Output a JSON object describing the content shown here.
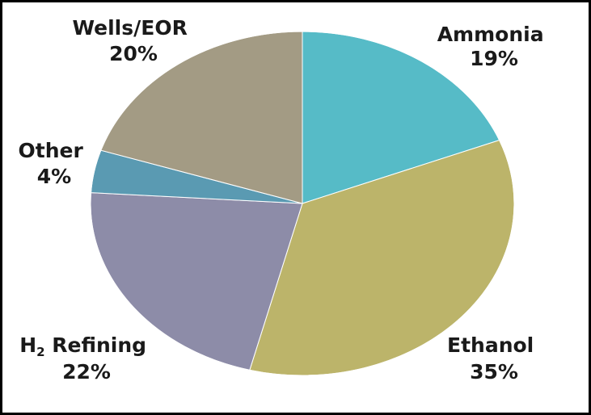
{
  "chart_data": {
    "type": "pie",
    "slices": [
      {
        "label": "Ammonia",
        "value": 19,
        "value_label": "19%",
        "color": "#56bbc7"
      },
      {
        "label": "Ethanol",
        "value": 35,
        "value_label": "35%",
        "color": "#bcb46a"
      },
      {
        "label": "H2 Refining",
        "label_base": "H",
        "label_sub": "2",
        "label_rest": " Refining",
        "value": 22,
        "value_label": "22%",
        "color": "#8d8ca8"
      },
      {
        "label": "Other",
        "value": 4,
        "value_label": "4%",
        "color": "#5a9ab2"
      },
      {
        "label": "Wells/EOR",
        "value": 20,
        "value_label": "20%",
        "color": "#a39b84"
      }
    ],
    "start": "top",
    "direction": "clockwise",
    "border_color": "#000000"
  }
}
